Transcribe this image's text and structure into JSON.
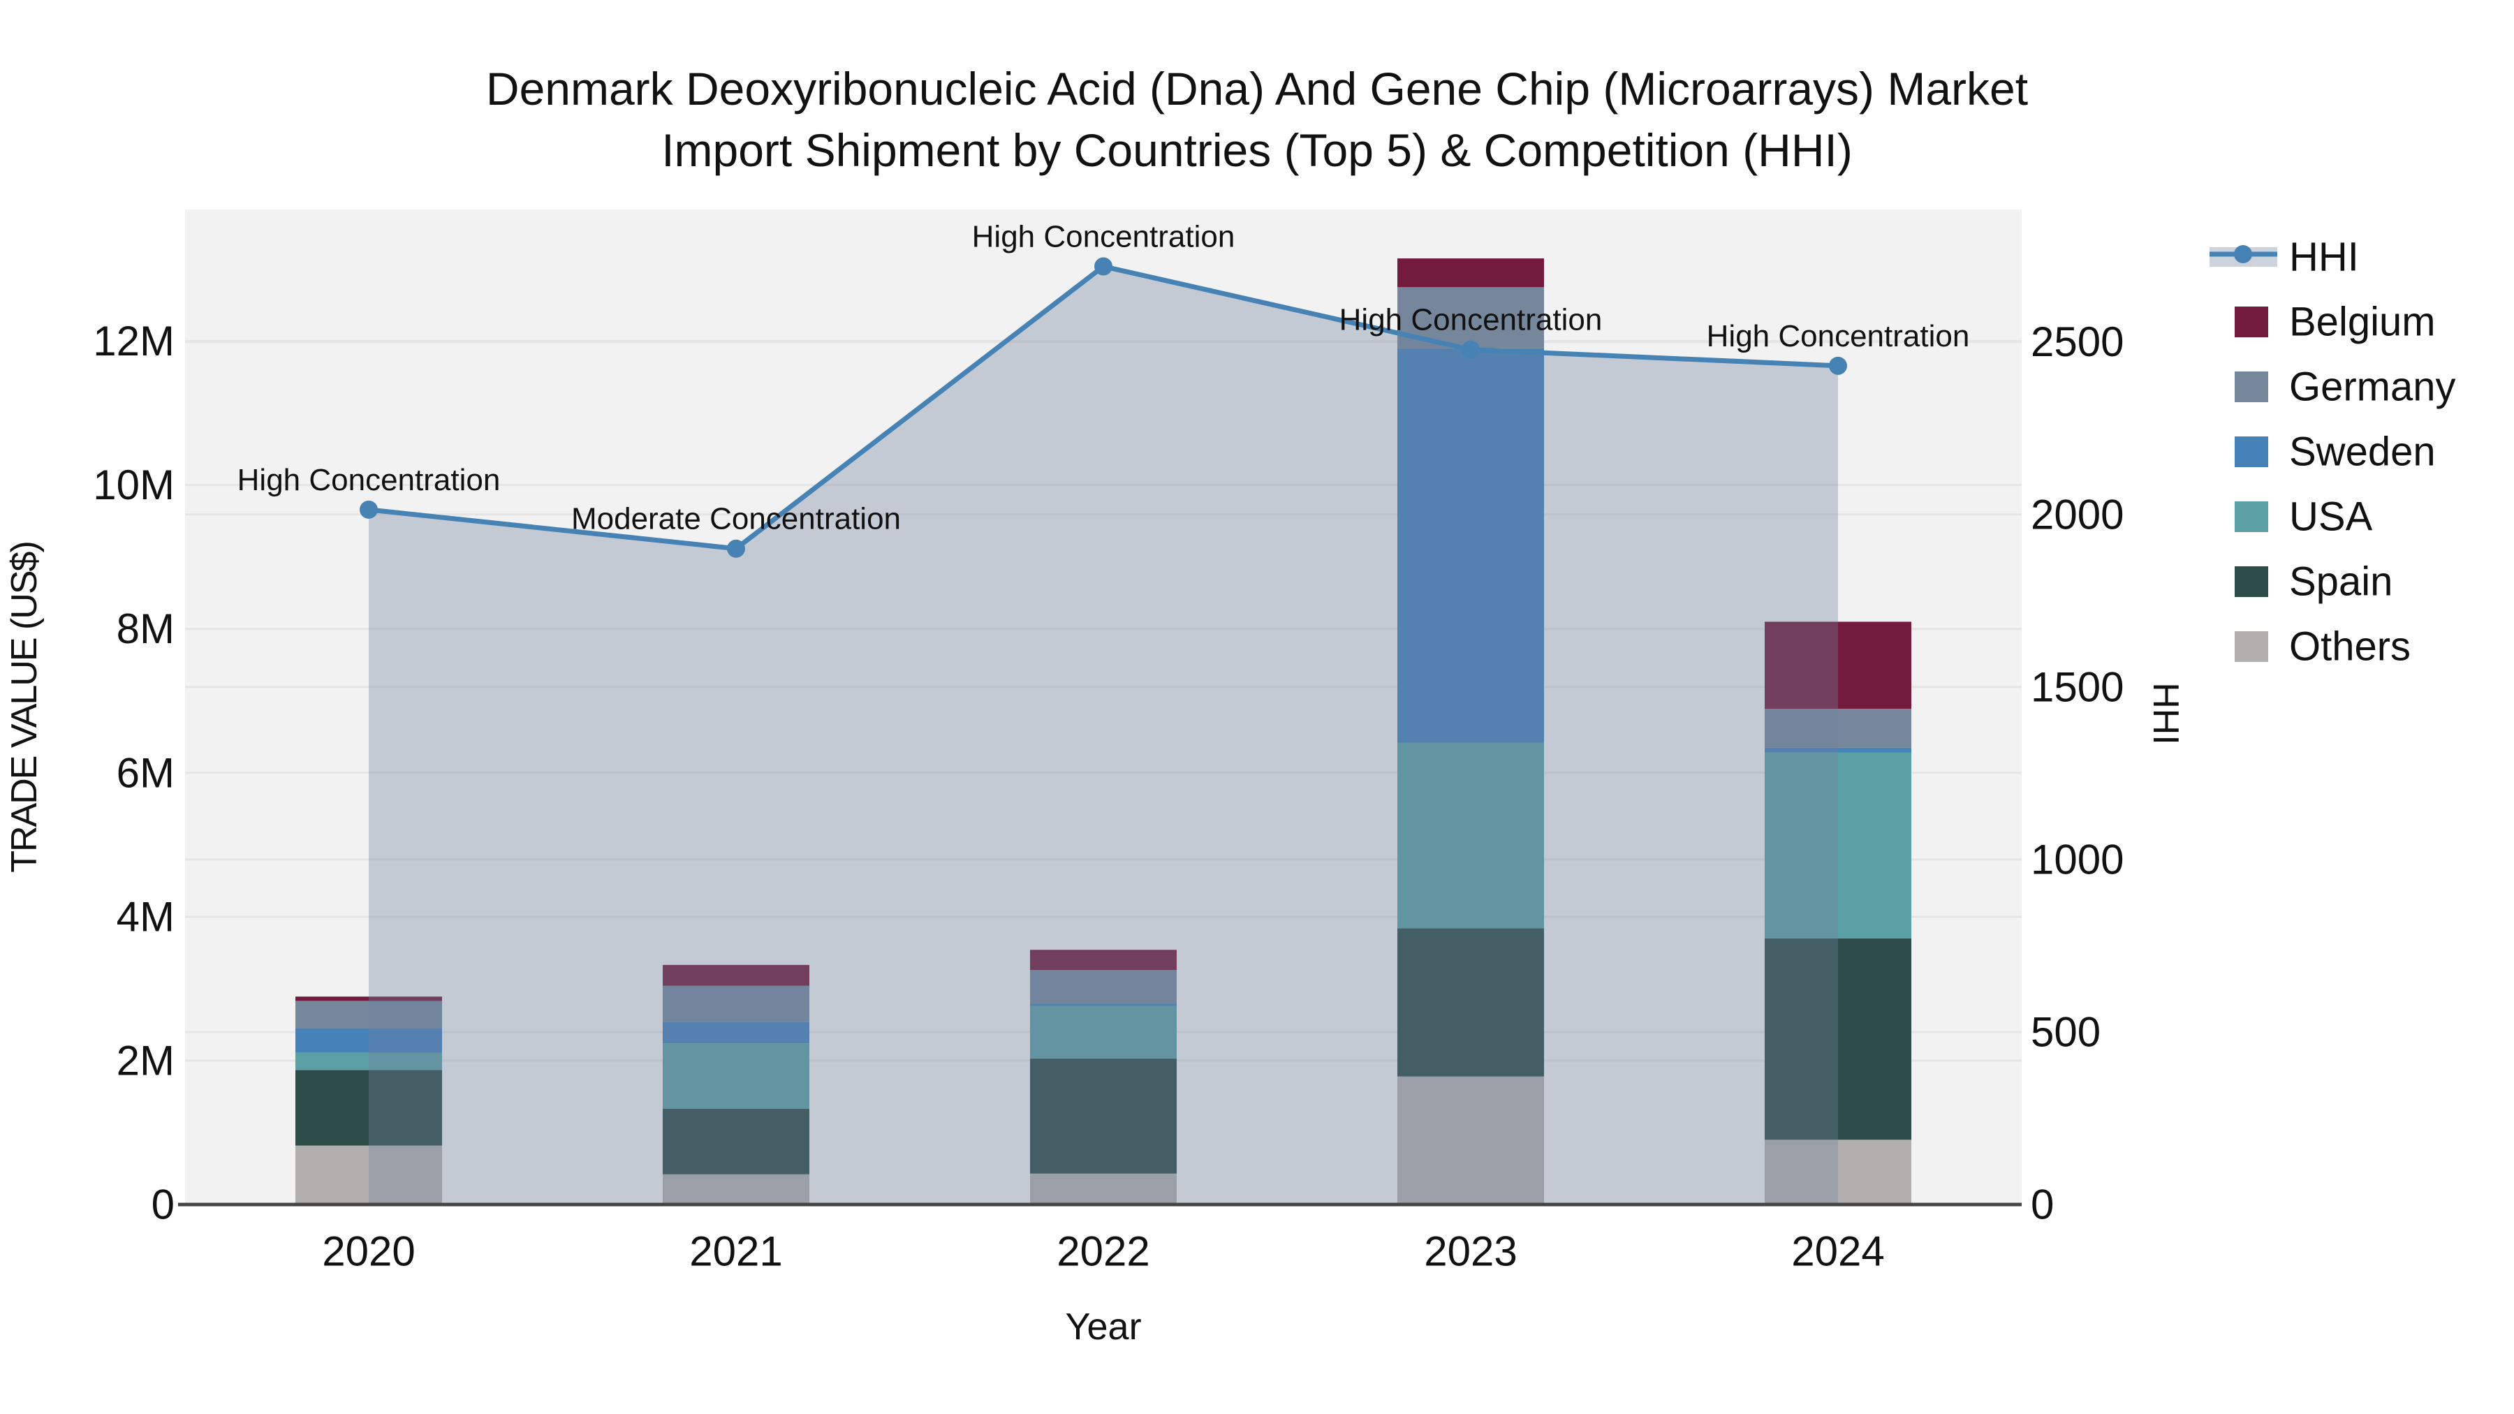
{
  "figure": {
    "title_line1": "Denmark Deoxyribonucleic Acid (Dna) And Gene Chip (Microarrays) Market",
    "title_line2": "Import Shipment by Countries (Top 5) & Competition (HHI)"
  },
  "axes": {
    "x_title": "Year",
    "y_left_title": "TRADE VALUE (US$)",
    "y_right_title": "HHI",
    "x_ticks": [
      "2020",
      "2021",
      "2022",
      "2023",
      "2024"
    ],
    "y_left_ticks": [
      {
        "label": "0",
        "value": 0
      },
      {
        "label": "2M",
        "value": 2
      },
      {
        "label": "4M",
        "value": 4
      },
      {
        "label": "6M",
        "value": 6
      },
      {
        "label": "8M",
        "value": 8
      },
      {
        "label": "10M",
        "value": 10
      },
      {
        "label": "12M",
        "value": 12
      }
    ],
    "y_right_ticks": [
      {
        "label": "0",
        "value": 0
      },
      {
        "label": "500",
        "value": 500
      },
      {
        "label": "1000",
        "value": 1000
      },
      {
        "label": "1500",
        "value": 1500
      },
      {
        "label": "2000",
        "value": 2000
      },
      {
        "label": "2500",
        "value": 2500
      }
    ],
    "y_left_max": 13.83,
    "y_right_max": 2884
  },
  "legend": {
    "items": [
      {
        "label": "HHI",
        "type": "line",
        "color": "#4682b4",
        "band_color": "#ccd3dc"
      },
      {
        "label": "Belgium",
        "type": "swatch",
        "color": "#721b3c"
      },
      {
        "label": "Germany",
        "type": "swatch",
        "color": "#76879b"
      },
      {
        "label": "Sweden",
        "type": "swatch",
        "color": "#4682b8"
      },
      {
        "label": "USA",
        "type": "swatch",
        "color": "#5ba0a4"
      },
      {
        "label": "Spain",
        "type": "swatch",
        "color": "#2d4c49"
      },
      {
        "label": "Others",
        "type": "swatch",
        "color": "#b2b0ae"
      }
    ]
  },
  "chart_data": {
    "type": "bar+line",
    "title": "Denmark Deoxyribonucleic Acid (Dna) And Gene Chip (Microarrays) Market Import Shipment by Countries (Top 5) & Competition (HHI)",
    "xlabel": "Year",
    "ylabel_left": "TRADE VALUE (US$)",
    "ylabel_right": "HHI",
    "categories": [
      "2020",
      "2021",
      "2022",
      "2023",
      "2024"
    ],
    "bar_values_unit": "millions US$",
    "stack_order_bottom_to_top": [
      "Others",
      "Spain",
      "USA",
      "Sweden",
      "Germany",
      "Belgium"
    ],
    "series": [
      {
        "name": "Others",
        "type": "bar",
        "color": "#b2b0ae",
        "values": [
          0.82,
          0.42,
          0.43,
          1.78,
          0.9
        ]
      },
      {
        "name": "Spain",
        "type": "bar",
        "color": "#2d4c49",
        "values": [
          1.05,
          0.91,
          1.6,
          2.06,
          2.8
        ]
      },
      {
        "name": "USA",
        "type": "bar",
        "color": "#5ba0a4",
        "values": [
          0.24,
          0.91,
          0.73,
          2.58,
          2.58
        ]
      },
      {
        "name": "Sweden",
        "type": "bar",
        "color": "#4682b8",
        "values": [
          0.34,
          0.3,
          0.03,
          5.48,
          0.07
        ]
      },
      {
        "name": "Germany",
        "type": "bar",
        "color": "#76879b",
        "values": [
          0.38,
          0.5,
          0.47,
          0.85,
          0.54
        ]
      },
      {
        "name": "Belgium",
        "type": "bar",
        "color": "#721b3c",
        "values": [
          0.06,
          0.29,
          0.28,
          0.4,
          1.21
        ]
      }
    ],
    "bar_totals": [
      2.89,
      3.33,
      3.54,
      13.15,
      8.1
    ],
    "line_series": {
      "name": "HHI",
      "color": "#4682b4",
      "area_fill": "rgba(112,130,158,0.35)",
      "values": [
        2014,
        1901,
        2719,
        2478,
        2431
      ]
    },
    "annotations": [
      {
        "category": "2020",
        "text": "High Concentration"
      },
      {
        "category": "2021",
        "text": "Moderate Concentration"
      },
      {
        "category": "2022",
        "text": "High Concentration"
      },
      {
        "category": "2023",
        "text": "High Concentration"
      },
      {
        "category": "2024",
        "text": "High Concentration"
      }
    ],
    "ylim_left": [
      0,
      13.83
    ],
    "ylim_right": [
      0,
      2884
    ],
    "grid": true,
    "legend_position": "right"
  },
  "colors": {
    "plot_bg": "#f2f2f2",
    "grid": "#e5e5e5",
    "axis_line": "#444444",
    "text": "#111111"
  }
}
